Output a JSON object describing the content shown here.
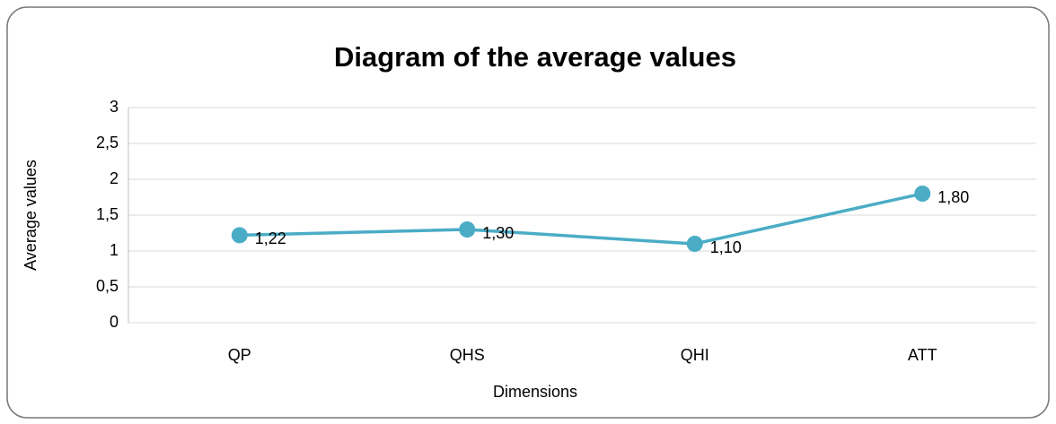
{
  "chart_data": {
    "type": "line",
    "title": "Diagram of the average values",
    "x_label": "Dimensions",
    "y_label": "Average values",
    "categories": [
      "QP",
      "QHS",
      "QHI",
      "ATT"
    ],
    "series": [
      {
        "name": "Average values",
        "color": "#4bacc6",
        "values": [
          1.22,
          1.3,
          1.1,
          1.8
        ],
        "value_labels": [
          "1,22",
          "1,30",
          "1,10",
          "1,80"
        ]
      }
    ],
    "ylim": [
      0,
      3
    ],
    "yticks": [
      0,
      {
        "value": 0.5,
        "label": "0,5"
      },
      1,
      {
        "value": 1.5,
        "label": "1,5"
      },
      2,
      {
        "value": 2.5,
        "label": "2,5"
      },
      3
    ],
    "grid": true
  }
}
